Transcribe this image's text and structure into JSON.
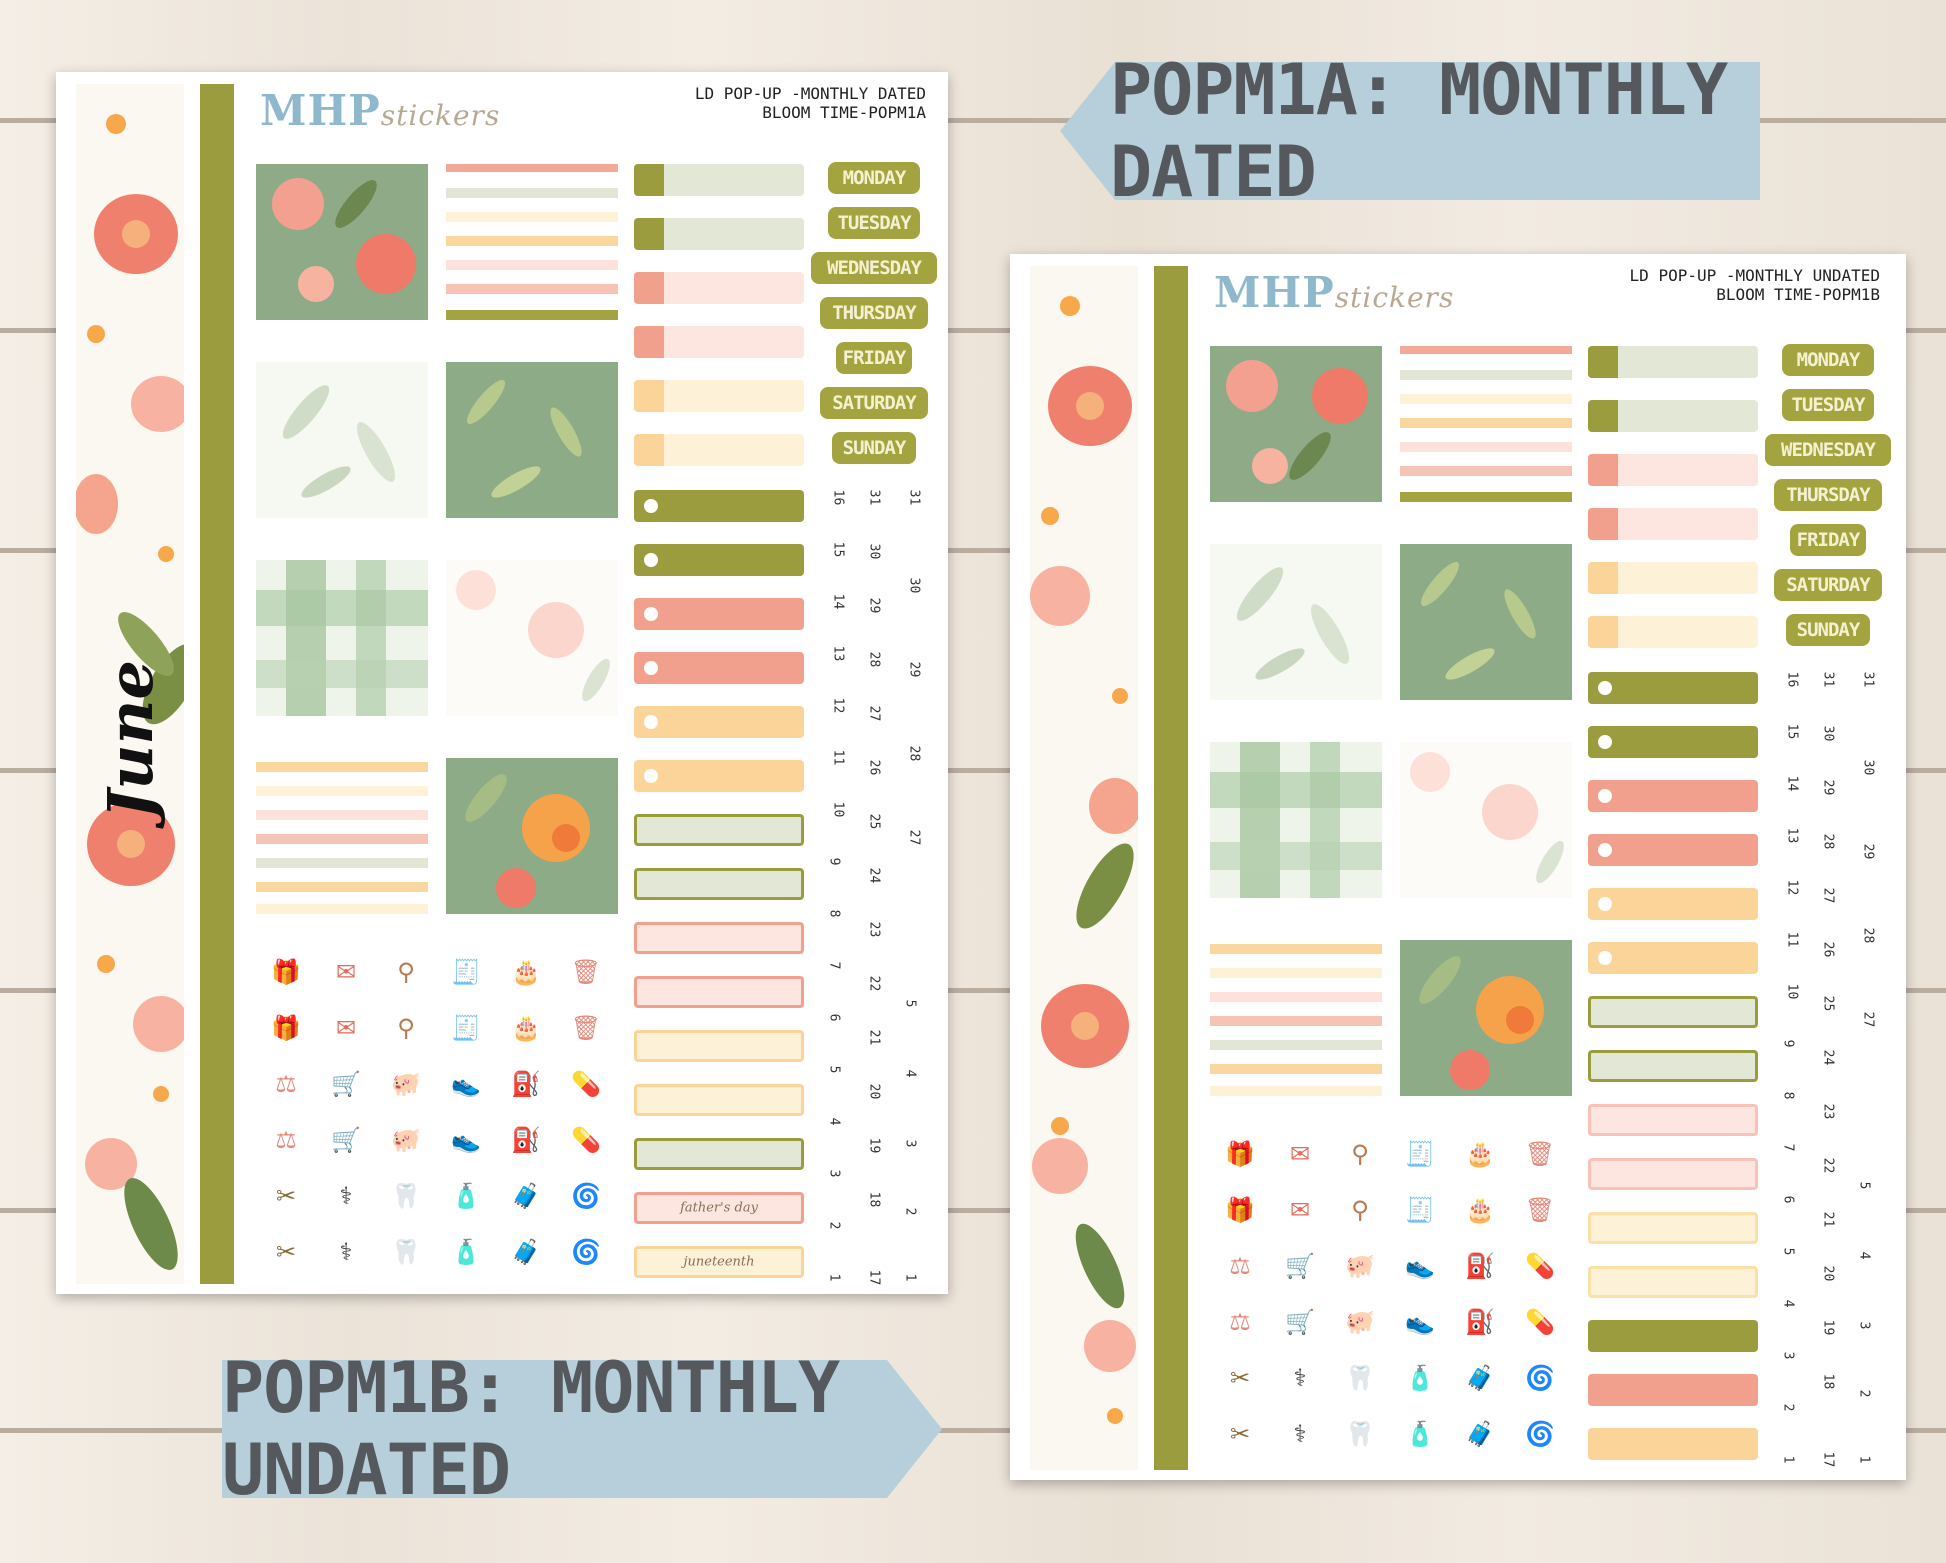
{
  "banners": {
    "dated": "POPM1A: MONTHLY DATED",
    "undated": "POPM1B: MONTHLY UNDATED"
  },
  "sheet_a": {
    "logo_main": "MHP",
    "logo_sub": "stickers",
    "title_line1": "LD POP-UP -MONTHLY DATED",
    "title_line2": "BLOOM TIME-POPM1A",
    "month": "June",
    "days": [
      "MONDAY",
      "TUESDAY",
      "WEDNESDAY",
      "THURSDAY",
      "FRIDAY",
      "SATURDAY",
      "SUNDAY"
    ],
    "label_tabs": [
      "father's day",
      "juneteenth"
    ],
    "number_columns": [
      [
        "16",
        "15",
        "14",
        "13",
        "12",
        "11",
        "10",
        "9",
        "8",
        "7",
        "6",
        "5",
        "4",
        "3",
        "2",
        "1"
      ],
      [
        "31",
        "30",
        "29",
        "28",
        "27",
        "26",
        "25",
        "24",
        "23",
        "22",
        "21",
        "20",
        "19",
        "18",
        "17"
      ],
      [
        "31",
        "30",
        "29",
        "28",
        "27",
        "5",
        "4",
        "3",
        "2",
        "1"
      ]
    ]
  },
  "sheet_b": {
    "logo_main": "MHP",
    "logo_sub": "stickers",
    "title_line1": "LD POP-UP -MONTHLY UNDATED",
    "title_line2": "BLOOM TIME-POPM1B",
    "days": [
      "MONDAY",
      "TUESDAY",
      "WEDNESDAY",
      "THURSDAY",
      "FRIDAY",
      "SATURDAY",
      "SUNDAY"
    ],
    "number_columns": [
      [
        "16",
        "15",
        "14",
        "13",
        "12",
        "11",
        "10",
        "9",
        "8",
        "7",
        "6",
        "5",
        "4",
        "3",
        "2",
        "1"
      ],
      [
        "31",
        "30",
        "29",
        "28",
        "27",
        "26",
        "25",
        "24",
        "23",
        "22",
        "21",
        "20",
        "19",
        "18",
        "17"
      ],
      [
        "31",
        "30",
        "29",
        "28",
        "27",
        "5",
        "4",
        "3",
        "2",
        "1"
      ]
    ]
  },
  "icon_rows": [
    [
      "gift-icon",
      "envelope-icon",
      "kettlebell-icon",
      "receipt-icon",
      "cake-icon",
      "trash-can-icon"
    ],
    [
      "gift-icon",
      "envelope-icon",
      "kettlebell-icon",
      "receipt-icon",
      "cake-icon",
      "trash-can-icon"
    ],
    [
      "scale-icon",
      "shopping-cart-icon",
      "piggy-bank-icon",
      "sneaker-icon",
      "gas-pump-icon",
      "pill-jar-icon"
    ],
    [
      "scale-icon",
      "shopping-cart-icon",
      "piggy-bank-icon",
      "sneaker-icon",
      "gas-pump-icon",
      "pill-jar-icon"
    ],
    [
      "comb-scissors-icon",
      "stethoscope-icon",
      "tooth-icon",
      "shampoo-icon",
      "luggage-icon",
      "washing-machine-icon"
    ],
    [
      "comb-scissors-icon",
      "stethoscope-icon",
      "tooth-icon",
      "shampoo-icon",
      "luggage-icon",
      "washing-machine-icon"
    ]
  ],
  "colors": {
    "olive": "#9a9c3e",
    "sage": "#8fae8a",
    "coral": "#f2a08e",
    "peach": "#fbd49a",
    "pale_green": "#e3e8d6",
    "pale_pink": "#fde6e0",
    "pale_yellow": "#fdf1d8",
    "banner_blue": "#b6cfdb"
  }
}
